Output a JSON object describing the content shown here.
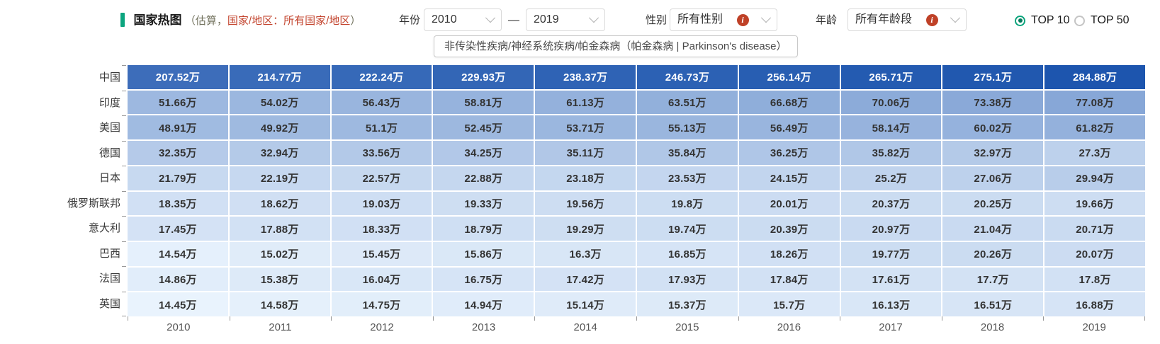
{
  "header": {
    "title": "国家热图",
    "subtitle_prefix": "（估算，",
    "subtitle_highlight": "国家/地区：所有国家/地区",
    "subtitle_suffix": "）"
  },
  "filters": {
    "year": {
      "label": "年份",
      "from": "2010",
      "separator": "—",
      "to": "2019"
    },
    "gender": {
      "label": "性别",
      "value": "所有性别"
    },
    "age": {
      "label": "年龄",
      "value": "所有年龄段"
    }
  },
  "top_filter": {
    "options": [
      {
        "label": "TOP 10",
        "selected": true
      },
      {
        "label": "TOP 50",
        "selected": false
      }
    ]
  },
  "tooltip": {
    "text": "非传染性疾病/神经系统疾病/帕金森病（帕金森病 | Parkinson's disease）"
  },
  "icons": {
    "info": "i"
  },
  "colors": {
    "accent_teal": "#0ca57f",
    "highlight_red": "#c3442e",
    "info_icon_bg": "#bf4127",
    "cell_text_dark": "#333333",
    "cell_text_light": "#ffffff"
  },
  "chart_data": {
    "type": "heatmap",
    "title": "国家热图",
    "x": [
      "2010",
      "2011",
      "2012",
      "2013",
      "2014",
      "2015",
      "2016",
      "2017",
      "2018",
      "2019"
    ],
    "categories": [
      "中国",
      "印度",
      "美国",
      "德国",
      "日本",
      "俄罗斯联邦",
      "意大利",
      "巴西",
      "法国",
      "英国"
    ],
    "unit": "万",
    "values": [
      [
        207.52,
        214.77,
        222.24,
        229.93,
        238.37,
        246.73,
        256.14,
        265.71,
        275.1,
        284.88
      ],
      [
        51.66,
        54.02,
        56.43,
        58.81,
        61.13,
        63.51,
        66.68,
        70.06,
        73.38,
        77.08
      ],
      [
        48.91,
        49.92,
        51.1,
        52.45,
        53.71,
        55.13,
        56.49,
        58.14,
        60.02,
        61.82
      ],
      [
        32.35,
        32.94,
        33.56,
        34.25,
        35.11,
        35.84,
        36.25,
        35.82,
        32.97,
        27.3
      ],
      [
        21.79,
        22.19,
        22.57,
        22.88,
        23.18,
        23.53,
        24.15,
        25.2,
        27.06,
        29.94
      ],
      [
        18.35,
        18.62,
        19.03,
        19.33,
        19.56,
        19.8,
        20.01,
        20.37,
        20.25,
        19.66
      ],
      [
        17.45,
        17.88,
        18.33,
        18.79,
        19.29,
        19.74,
        20.39,
        20.97,
        21.04,
        20.71
      ],
      [
        14.54,
        15.02,
        15.45,
        15.86,
        16.3,
        16.85,
        18.26,
        19.77,
        20.26,
        20.07
      ],
      [
        14.86,
        15.38,
        16.04,
        16.75,
        17.42,
        17.93,
        17.84,
        17.61,
        17.7,
        17.8
      ],
      [
        14.45,
        14.58,
        14.75,
        14.94,
        15.14,
        15.37,
        15.7,
        16.13,
        16.51,
        16.88
      ]
    ],
    "color_scale": {
      "min": 14.45,
      "max": 284.88,
      "min_color": "#e9f3fd",
      "max_color": "#1d55ae",
      "scale": "sqrt"
    },
    "legend_position": "none",
    "grid": false
  }
}
